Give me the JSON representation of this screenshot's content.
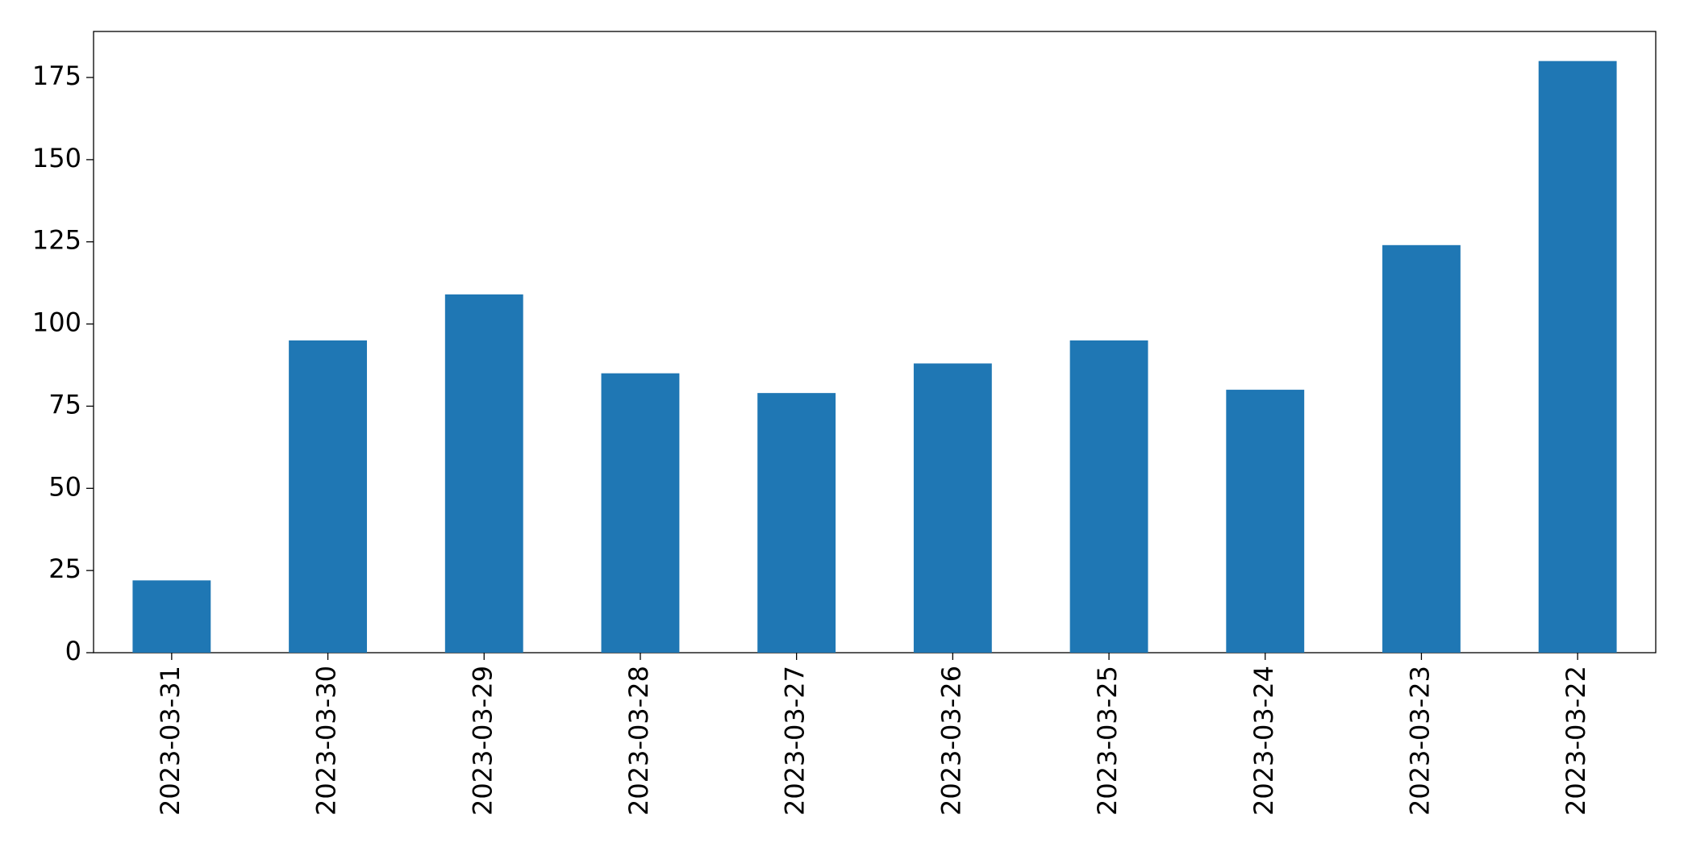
{
  "chart_data": {
    "type": "bar",
    "categories": [
      "2023-03-31",
      "2023-03-30",
      "2023-03-29",
      "2023-03-28",
      "2023-03-27",
      "2023-03-26",
      "2023-03-25",
      "2023-03-24",
      "2023-03-23",
      "2023-03-22"
    ],
    "values": [
      22,
      95,
      109,
      85,
      79,
      88,
      95,
      80,
      124,
      180
    ],
    "color": "#1f77b4",
    "ylim": [
      0,
      189
    ],
    "yticks": [
      0,
      25,
      50,
      75,
      100,
      125,
      150,
      175
    ],
    "grid": false
  }
}
